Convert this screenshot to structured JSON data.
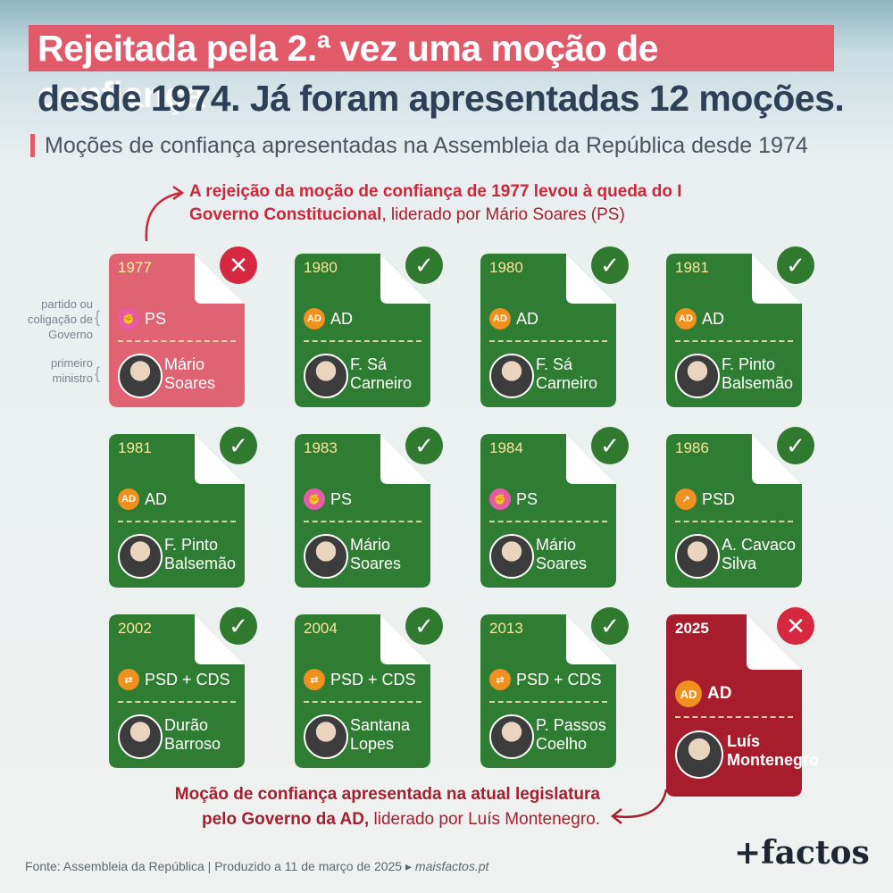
{
  "header": {
    "title_line1": "Rejeitada pela 2.ª vez uma moção de confiança",
    "title_line2": "desde 1974. Já foram apresentadas 12 moções.",
    "subtitle": "Moções de confiança apresentadas na Assembleia da República desde 1974"
  },
  "annotations": {
    "top_bold": "A rejeição da moção de confiança de 1977 levou à queda do I Governo Constitucional",
    "top_plain": ", liderado por Mário Soares (PS)",
    "bottom_bold": "Moção de confiança apresentada na atual legislatura pelo Governo da AD,",
    "bottom_plain": " liderado por Luís Montenegro."
  },
  "legend": {
    "party_label": "partido ou coligação de Governo",
    "pm_label": "primeiro ministro"
  },
  "cards": [
    {
      "year": "1977",
      "party": "PS",
      "party_icon": "ps-fist-icon",
      "pm": "Mário\nSoares",
      "result": "rejected"
    },
    {
      "year": "1980",
      "party": "AD",
      "party_icon": "ad-icon",
      "pm": "F. Sá\nCarneiro",
      "result": "approved"
    },
    {
      "year": "1980",
      "party": "AD",
      "party_icon": "ad-icon",
      "pm": "F. Sá\nCarneiro",
      "result": "approved"
    },
    {
      "year": "1981",
      "party": "AD",
      "party_icon": "ad-icon",
      "pm": "F. Pinto\nBalsemão",
      "result": "approved"
    },
    {
      "year": "1981",
      "party": "AD",
      "party_icon": "ad-icon",
      "pm": "F. Pinto\nBalsemão",
      "result": "approved"
    },
    {
      "year": "1983",
      "party": "PS",
      "party_icon": "ps-fist-icon",
      "pm": "Mário\nSoares",
      "result": "approved"
    },
    {
      "year": "1984",
      "party": "PS",
      "party_icon": "ps-fist-icon",
      "pm": "Mário\nSoares",
      "result": "approved"
    },
    {
      "year": "1986",
      "party": "PSD",
      "party_icon": "psd-arrow-icon",
      "pm": "A. Cavaco\nSilva",
      "result": "approved"
    },
    {
      "year": "2002",
      "party": "PSD + CDS",
      "party_icon": "psd-cds-icon",
      "pm": "Durão\nBarroso",
      "result": "approved"
    },
    {
      "year": "2004",
      "party": "PSD + CDS",
      "party_icon": "psd-cds-icon",
      "pm": "Santana\nLopes",
      "result": "approved"
    },
    {
      "year": "2013",
      "party": "PSD + CDS",
      "party_icon": "psd-cds-icon",
      "pm": "P. Passos\nCoelho",
      "result": "approved"
    },
    {
      "year": "2025",
      "party": "AD",
      "party_icon": "ad-icon",
      "pm": "Luís\nMontenegro",
      "result": "rejected"
    }
  ],
  "icons": {
    "ad": "AD",
    "ps": "✊",
    "psd": "↗",
    "psdcds": "⇄",
    "approved": "✓",
    "rejected": "✕"
  },
  "colors": {
    "approved_card": "#2f7d33",
    "rejected_card": "#e06373",
    "current_card": "#a71d2e"
  },
  "footer": {
    "source": "Fonte: Assembleia da República | Produzido a 11 de março de 2025 ▸ ",
    "site": "maisfactos.pt",
    "logo": "+factos"
  }
}
